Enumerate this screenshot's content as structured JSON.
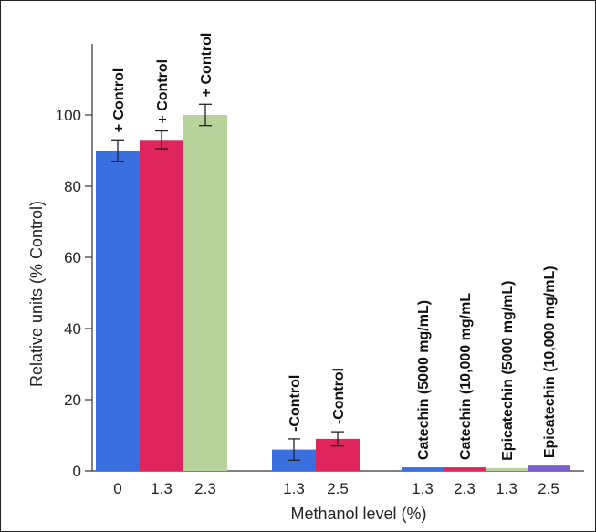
{
  "chart_data": {
    "type": "bar",
    "xlabel": "Methanol level (%)",
    "ylabel": "Relative units (% Control)",
    "ylim": [
      0,
      120
    ],
    "yticks": [
      0,
      20,
      40,
      60,
      80,
      100
    ],
    "grid": false,
    "bars": [
      {
        "group": 0,
        "category": "0",
        "value": 90,
        "error": 3,
        "color": "#3a6fe0",
        "label": "+ Control"
      },
      {
        "group": 0,
        "category": "1.3",
        "value": 93,
        "error": 2.5,
        "color": "#e0245e",
        "label": "+ Control"
      },
      {
        "group": 0,
        "category": "2.3",
        "value": 100,
        "error": 3,
        "color": "#b5d39a",
        "label": "+ Control"
      },
      {
        "group": 1,
        "category": "1.3",
        "value": 6,
        "error": 3,
        "color": "#3a6fe0",
        "label": "-Control"
      },
      {
        "group": 1,
        "category": "2.5",
        "value": 9,
        "error": 2,
        "color": "#e0245e",
        "label": "-Control"
      },
      {
        "group": 2,
        "category": "1.3",
        "value": 1,
        "error": null,
        "color": "#3a6fe0",
        "label": "Catechin (5000 mg/mL)"
      },
      {
        "group": 2,
        "category": "2.3",
        "value": 1,
        "error": null,
        "color": "#e0245e",
        "label": "Catechin (10,000 mg/mL"
      },
      {
        "group": 2,
        "category": "1.3",
        "value": 0.8,
        "error": null,
        "color": "#b5d39a",
        "label": "Epicatechin (5000 mg/mL)"
      },
      {
        "group": 2,
        "category": "2.5",
        "value": 1.5,
        "error": null,
        "color": "#7b5fd0",
        "label": "Epicatechin (10,000 mg/mL)"
      }
    ]
  }
}
